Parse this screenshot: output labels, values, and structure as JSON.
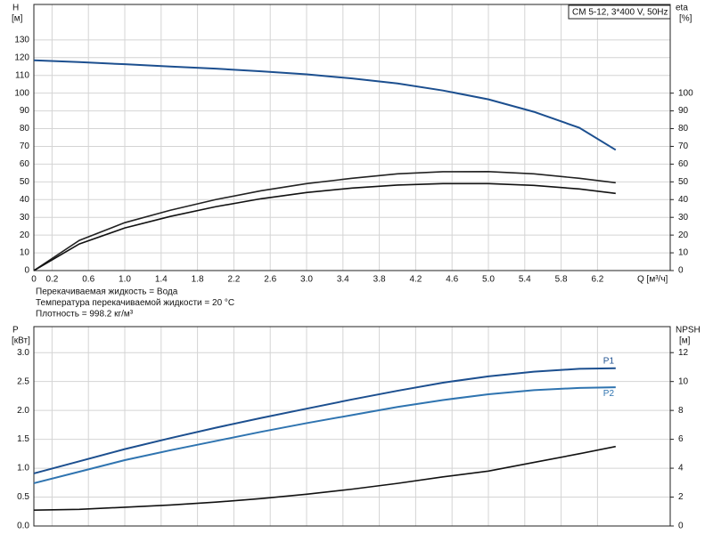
{
  "chart_data": [
    {
      "type": "line",
      "title": "CM 5-12, 3*400 V, 50Hz",
      "xlabel": "Q [м³/ч]",
      "ylabel": "H",
      "yunit": "[м]",
      "y2label": "eta",
      "y2unit": "[%]",
      "notes": [
        "Перекачиваемая жидкость = Вода",
        "Температура перекачиваемой жидкости = 20 °C",
        "Плотность = 998.2 кг/м³"
      ],
      "xlim": [
        0,
        7.0
      ],
      "xticks": [
        0,
        0.2,
        0.6,
        {
          "value": 1.0,
          "label": "1.0"
        },
        1.4,
        1.8,
        2.2,
        2.6,
        {
          "value": 3.0,
          "label": "3.0"
        },
        3.4,
        3.8,
        4.2,
        4.6,
        {
          "value": 5.0,
          "label": "5.0"
        },
        5.4,
        5.8,
        6.2
      ],
      "xtick_labels": true,
      "ylim": [
        0,
        150
      ],
      "yticks": [
        0,
        10,
        20,
        30,
        40,
        50,
        60,
        70,
        80,
        90,
        100,
        110,
        120,
        130
      ],
      "y2lim": [
        0,
        150
      ],
      "y2ticks": [
        0,
        10,
        20,
        30,
        40,
        50,
        60,
        70,
        80,
        90,
        100
      ],
      "grid": true,
      "x": [
        0,
        0.5,
        1.0,
        1.5,
        2.0,
        2.5,
        3.0,
        3.5,
        4.0,
        4.5,
        5.0,
        5.5,
        6.0,
        6.4
      ],
      "series": [
        {
          "color": "#1c4f8f",
          "values": [
            118.5,
            117.5,
            116.3,
            115,
            113.8,
            112.3,
            110.6,
            108.3,
            105.5,
            101.5,
            96.5,
            89.5,
            80.5,
            68
          ]
        },
        {
          "color": "#222222",
          "axis": "y2",
          "values": [
            0,
            17,
            27,
            34,
            40,
            45,
            49,
            52,
            54.5,
            55.7,
            55.8,
            54.5,
            52,
            49.5
          ]
        },
        {
          "color": "#111111",
          "axis": "y2",
          "values": [
            0,
            15,
            24,
            30.5,
            36,
            40.5,
            44,
            46.5,
            48.2,
            49,
            49,
            48,
            46,
            43.5
          ]
        }
      ]
    },
    {
      "type": "line",
      "ylabel": "P",
      "yunit": "[кВт]",
      "y2label": "NPSH",
      "y2unit": "[м]",
      "xlim": [
        0,
        7.0
      ],
      "xticks": [
        0,
        0.2,
        0.6,
        1.0,
        1.4,
        1.8,
        2.2,
        2.6,
        3.0,
        3.4,
        3.8,
        4.2,
        4.6,
        5.0,
        5.4,
        5.8,
        6.2
      ],
      "xtick_labels": false,
      "ylim": [
        0,
        3.45
      ],
      "yticks": [
        {
          "value": 0,
          "label": "0.0"
        },
        0.5,
        {
          "value": 1.0,
          "label": "1.0"
        },
        1.5,
        {
          "value": 2.0,
          "label": "2.0"
        },
        2.5,
        {
          "value": 3.0,
          "label": "3.0"
        }
      ],
      "y2lim": [
        0,
        13.8
      ],
      "y2ticks": [
        0,
        2,
        4,
        6,
        8,
        10,
        12
      ],
      "grid": true,
      "x": [
        0,
        0.5,
        1.0,
        1.5,
        2.0,
        2.5,
        3.0,
        3.5,
        4.0,
        4.5,
        5.0,
        5.5,
        6.0,
        6.4
      ],
      "series": [
        {
          "name": "P1",
          "color": "#1c4f8f",
          "values": [
            0.91,
            1.12,
            1.33,
            1.52,
            1.7,
            1.87,
            2.03,
            2.19,
            2.34,
            2.48,
            2.59,
            2.67,
            2.72,
            2.73
          ]
        },
        {
          "name": "P2",
          "color": "#2f74b0",
          "values": [
            0.74,
            0.94,
            1.14,
            1.31,
            1.47,
            1.63,
            1.78,
            1.92,
            2.06,
            2.18,
            2.28,
            2.35,
            2.39,
            2.4
          ]
        },
        {
          "color": "#111111",
          "axis": "y2",
          "values": [
            1.1,
            1.15,
            1.3,
            1.45,
            1.65,
            1.9,
            2.2,
            2.55,
            2.95,
            3.4,
            3.8,
            4.4,
            5.0,
            5.5
          ]
        }
      ]
    }
  ]
}
